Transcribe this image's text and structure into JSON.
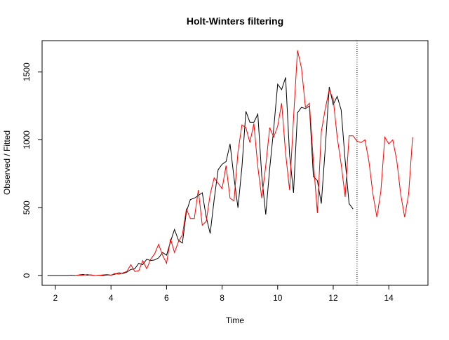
{
  "chart_data": {
    "type": "line",
    "title": "Holt-Winters filtering",
    "x_label": "Time",
    "y_label": "Observed / Fitted",
    "x": [
      1.714,
      1.857,
      2.0,
      2.143,
      2.286,
      2.429,
      2.571,
      2.714,
      2.857,
      3.0,
      3.143,
      3.286,
      3.429,
      3.571,
      3.714,
      3.857,
      4.0,
      4.143,
      4.286,
      4.429,
      4.571,
      4.714,
      4.857,
      5.0,
      5.143,
      5.286,
      5.429,
      5.571,
      5.714,
      5.857,
      6.0,
      6.143,
      6.286,
      6.429,
      6.571,
      6.714,
      6.857,
      7.0,
      7.143,
      7.286,
      7.429,
      7.571,
      7.714,
      7.857,
      8.0,
      8.143,
      8.286,
      8.429,
      8.571,
      8.714,
      8.857,
      9.0,
      9.143,
      9.286,
      9.429,
      9.571,
      9.714,
      9.857,
      10.0,
      10.143,
      10.286,
      10.429,
      10.571,
      10.714,
      10.857,
      11.0,
      11.143,
      11.286,
      11.429,
      11.571,
      11.714,
      11.857,
      12.0,
      12.143,
      12.286,
      12.429,
      12.571,
      12.714,
      12.857,
      13.0,
      13.143,
      13.286,
      13.429,
      13.571,
      13.714,
      13.857,
      14.0,
      14.143,
      14.286,
      14.429,
      14.571,
      14.714,
      14.857
    ],
    "series": [
      {
        "color": "#000000",
        "values": [
          0,
          0,
          0,
          0,
          0,
          0,
          2,
          0,
          5,
          8,
          3,
          5,
          0,
          2,
          0,
          5,
          3,
          10,
          20,
          15,
          25,
          45,
          50,
          90,
          80,
          120,
          110,
          115,
          130,
          170,
          150,
          250,
          340,
          260,
          240,
          470,
          560,
          570,
          590,
          610,
          430,
          310,
          560,
          780,
          820,
          840,
          970,
          720,
          500,
          800,
          1210,
          1130,
          1130,
          1190,
          730,
          450,
          790,
          1080,
          1410,
          1370,
          1460,
          890,
          610,
          1200,
          1240,
          1230,
          1250,
          730,
          700,
          530,
          940,
          1390,
          1260,
          1320,
          1220,
          850,
          530,
          490,
          null,
          null,
          null,
          null,
          null,
          null,
          null,
          null,
          null,
          null,
          null,
          null,
          null,
          null,
          null
        ]
      },
      {
        "color": "#ff0000",
        "values": [
          null,
          null,
          null,
          null,
          null,
          null,
          null,
          0,
          3,
          2,
          8,
          3,
          0,
          2,
          5,
          8,
          3,
          15,
          10,
          20,
          30,
          80,
          30,
          35,
          110,
          50,
          120,
          160,
          230,
          150,
          90,
          270,
          170,
          250,
          300,
          490,
          420,
          420,
          630,
          370,
          400,
          600,
          720,
          680,
          640,
          810,
          570,
          550,
          910,
          1110,
          1090,
          980,
          1120,
          800,
          570,
          810,
          1090,
          1020,
          1100,
          1270,
          900,
          630,
          1160,
          1660,
          1530,
          1240,
          1270,
          840,
          460,
          1060,
          1230,
          1370,
          1300,
          1020,
          820,
          580,
          1030,
          1030,
          990,
          980,
          1000,
          840,
          600,
          430,
          620,
          1020,
          970,
          1000,
          850,
          600,
          430,
          600,
          1020
        ]
      }
    ],
    "vline_x": 12.857,
    "xlim": [
      1.52,
      15.41
    ],
    "ylim": [
      -72,
      1731
    ],
    "xticks": [
      2,
      4,
      6,
      8,
      10,
      12,
      14
    ],
    "yticks": [
      0,
      500,
      1000,
      1500
    ]
  }
}
